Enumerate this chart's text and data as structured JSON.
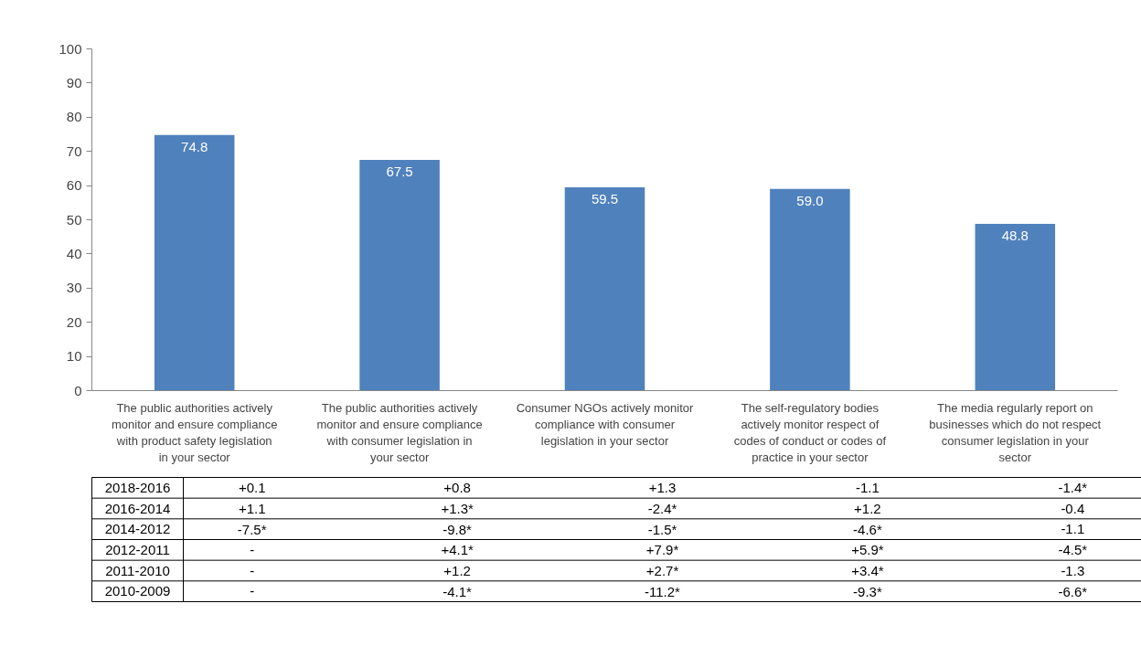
{
  "chart_data": {
    "type": "bar",
    "categories": [
      "The public authorities actively monitor and ensure compliance with product safety legislation in your sector",
      "The public authorities actively monitor and ensure compliance with consumer legislation in your sector",
      "Consumer NGOs actively monitor compliance with consumer legislation in your sector",
      "The self-regulatory bodies actively monitor respect of codes of conduct or codes of practice in your sector",
      "The media regularly report on businesses which do not respect consumer legislation in your sector"
    ],
    "values": [
      74.8,
      67.5,
      59.5,
      59.0,
      48.8
    ],
    "value_labels": [
      "74.8",
      "67.5",
      "59.5",
      "59.0",
      "48.8"
    ],
    "color": "#4f81bd",
    "ylim": [
      0,
      100
    ],
    "yticks": [
      0,
      10,
      20,
      30,
      40,
      50,
      60,
      70,
      80,
      90,
      100
    ],
    "grid": false,
    "annotations": [
      "2018-2016",
      "+0.1",
      "+0.8",
      "+1.3",
      "-1.1",
      "-1.4*",
      "2016-2014",
      "+1.1",
      "+1.3*",
      "-2.4*",
      "+1.2",
      "-0.4",
      "2014-2012",
      "-7.5*",
      "-9.8*",
      "-1.5*",
      "-4.6*",
      "-1.1",
      "2012-2011",
      "-",
      "+4.1*",
      "+7.9*",
      "+5.9*",
      "-4.5*",
      "2011-2010",
      "-",
      "+1.2",
      "+2.7*",
      "+3.4*",
      "-1.3",
      "2010-2009",
      "-",
      "-4.1*",
      "-11.2*",
      "-9.3*",
      "-6.6*"
    ]
  }
}
